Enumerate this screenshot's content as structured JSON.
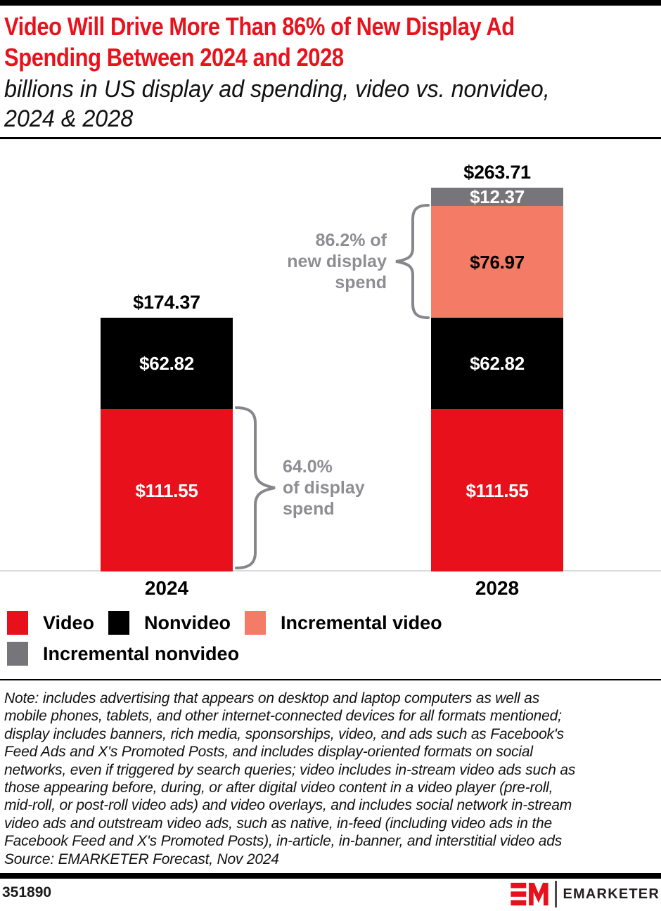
{
  "header": {
    "title_lines": [
      "Video Will Drive More Than 86% of New Display Ad",
      "Spending Between 2024 and 2028"
    ],
    "subtitle_lines": [
      "billions in US display ad spending, video vs. nonvideo,",
      "2024 & 2028"
    ]
  },
  "chart_data": {
    "type": "bar",
    "stacked": true,
    "title": "billions in US display ad spending, video vs. nonvideo, 2024 & 2028",
    "unit": "billions of US dollars",
    "value_prefix": "$",
    "categories": [
      "2024",
      "2028"
    ],
    "series": [
      {
        "name": "Video",
        "color": "#E8111B",
        "label_color": "#FFFFFF",
        "values": [
          111.55,
          111.55
        ]
      },
      {
        "name": "Nonvideo",
        "color": "#000000",
        "label_color": "#FFFFFF",
        "values": [
          62.82,
          62.82
        ]
      },
      {
        "name": "Incremental video",
        "color": "#F47C66",
        "label_color": "#000000",
        "values": [
          0,
          76.97
        ]
      },
      {
        "name": "Incremental nonvideo",
        "color": "#76767A",
        "label_color": "#FFFFFF",
        "values": [
          0,
          12.37
        ]
      }
    ],
    "totals": [
      174.37,
      263.71
    ],
    "annotations": [
      {
        "id": "new-display-share",
        "lines": [
          "86.2% of",
          "new display",
          "spend"
        ]
      },
      {
        "id": "display-share",
        "lines": [
          "64.0%",
          "of display",
          "spend"
        ]
      }
    ],
    "legend_position": "bottom",
    "grid": false
  },
  "legend": {
    "items": [
      {
        "label": "Video",
        "color": "#E8111B"
      },
      {
        "label": "Nonvideo",
        "color": "#000000"
      },
      {
        "label": "Incremental video",
        "color": "#F47C66"
      },
      {
        "label": "Incremental nonvideo",
        "color": "#76767A"
      }
    ]
  },
  "note": {
    "lines": [
      "Note: includes advertising that appears on desktop and laptop computers as well as",
      "mobile phones, tablets, and other internet-connected devices for all formats mentioned;",
      "display includes banners, rich media, sponsorships, video, and ads such as Facebook's",
      "Feed Ads and X's Promoted Posts, and includes display-oriented formats on social",
      "networks, even if triggered by search queries; video includes in-stream video ads such as",
      "those appearing before, during, or after digital video content in a video player (pre-roll,",
      "mid-roll, or post-roll video ads) and video overlays, and includes social network in-stream",
      "video ads and outstream video ads, such as native, in-feed (including video ads in the",
      "Facebook Feed and X's Promoted Posts), in-article, in-banner, and interstitial video ads",
      "Source: EMARKETER Forecast, Nov 2024"
    ]
  },
  "footer": {
    "chart_id": "351890",
    "brand_text": "EMARKETER"
  }
}
